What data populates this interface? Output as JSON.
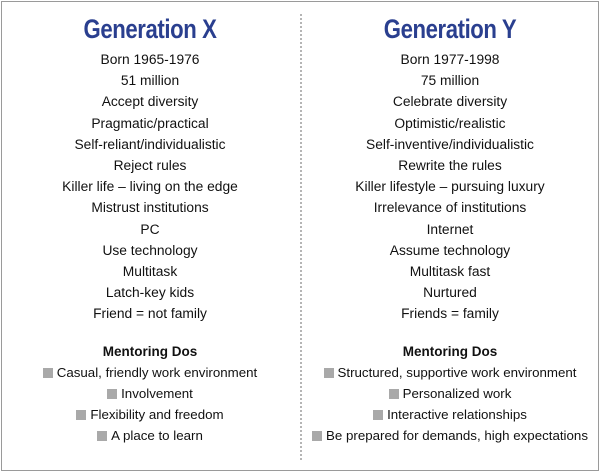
{
  "left": {
    "title": "Generation X",
    "traits": [
      "Born 1965-1976",
      "51 million",
      "Accept diversity",
      "Pragmatic/practical",
      "Self-reliant/individualistic",
      "Reject rules",
      "Killer life – living on the edge",
      "Mistrust institutions",
      "PC",
      "Use technology",
      "Multitask",
      "Latch-key kids",
      "Friend = not family"
    ],
    "mentoring_heading": "Mentoring Dos",
    "mentoring_dos": [
      "Casual, friendly work environment",
      "Involvement",
      "Flexibility and freedom",
      "A place to learn"
    ]
  },
  "right": {
    "title": "Generation Y",
    "traits": [
      "Born 1977-1998",
      "75 million",
      "Celebrate diversity",
      "Optimistic/realistic",
      "Self-inventive/individualistic",
      "Rewrite the rules",
      "Killer lifestyle – pursuing luxury",
      "Irrelevance of institutions",
      "Internet",
      "Assume technology",
      "Multitask fast",
      "Nurtured",
      "Friends = family"
    ],
    "mentoring_heading": "Mentoring Dos",
    "mentoring_dos": [
      "Structured, supportive work environment",
      "Personalized work",
      "Interactive relationships",
      "Be prepared for demands, high expectations"
    ]
  },
  "colors": {
    "title": "#2a3f8f",
    "bullet": "#a9a9a9",
    "border": "#9a9a9a"
  }
}
